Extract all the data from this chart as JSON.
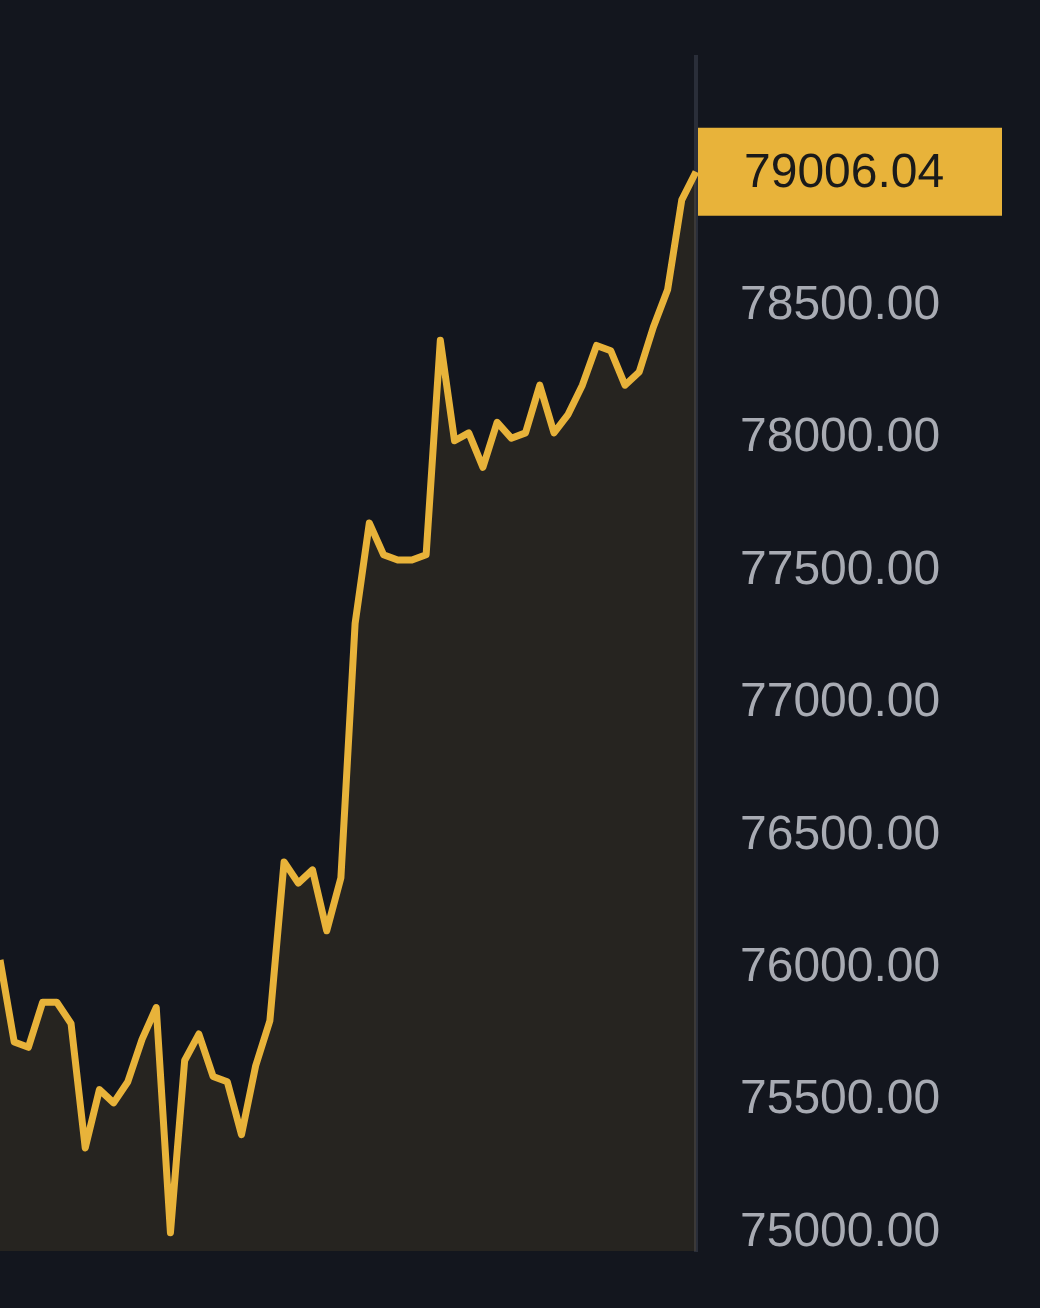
{
  "chart_data": {
    "type": "area",
    "categories": [
      null,
      null,
      null,
      null,
      null,
      null,
      null,
      null,
      null,
      null,
      null,
      null,
      null,
      null,
      null,
      null,
      null,
      null,
      null,
      null,
      null,
      null,
      null,
      null,
      null,
      null,
      null,
      null,
      null,
      null,
      null,
      null,
      null,
      null,
      null,
      null,
      null,
      null,
      null,
      null,
      null,
      null,
      null,
      null,
      null,
      null,
      null,
      null,
      null,
      null
    ],
    "series": [
      {
        "color": "#e8b33a",
        "values": [
          76030,
          75720,
          75700,
          75870,
          75870,
          75790,
          75320,
          75540,
          75490,
          75570,
          75730,
          75850,
          75000,
          75650,
          75750,
          75590,
          75570,
          75370,
          75630,
          75800,
          76400,
          76320,
          76370,
          76140,
          76340,
          77300,
          77680,
          77560,
          77540,
          77540,
          77560,
          78370,
          77990,
          78020,
          77890,
          78060,
          78000,
          78020,
          78200,
          78020,
          78090,
          78200,
          78350,
          78330,
          78200,
          78250,
          78420,
          78560,
          78900,
          79006.04
        ],
        "value_labels": [
          null,
          null,
          null,
          null,
          null,
          null,
          null,
          null,
          null,
          null,
          null,
          null,
          null,
          null,
          null,
          null,
          null,
          null,
          null,
          null,
          null,
          null,
          null,
          null,
          null,
          null,
          null,
          null,
          null,
          null,
          null,
          null,
          null,
          null,
          null,
          null,
          null,
          null,
          null,
          null,
          null,
          null,
          null,
          null,
          null,
          null,
          null,
          null,
          null,
          "79006.04"
        ]
      }
    ],
    "ylim": [
      74930,
      79440
    ],
    "yticks": [
      {
        "value": 75000,
        "label": "75000.00"
      },
      {
        "value": 75500,
        "label": "75500.00"
      },
      {
        "value": 76000,
        "label": "76000.00"
      },
      {
        "value": 76500,
        "label": "76500.00"
      },
      {
        "value": 77000,
        "label": "77000.00"
      },
      {
        "value": 77500,
        "label": "77500.00"
      },
      {
        "value": 78000,
        "label": "78000.00"
      },
      {
        "value": 78500,
        "label": "78500.00"
      }
    ],
    "grid": false,
    "legend": false,
    "marker": "none",
    "line_style": "solid"
  }
}
